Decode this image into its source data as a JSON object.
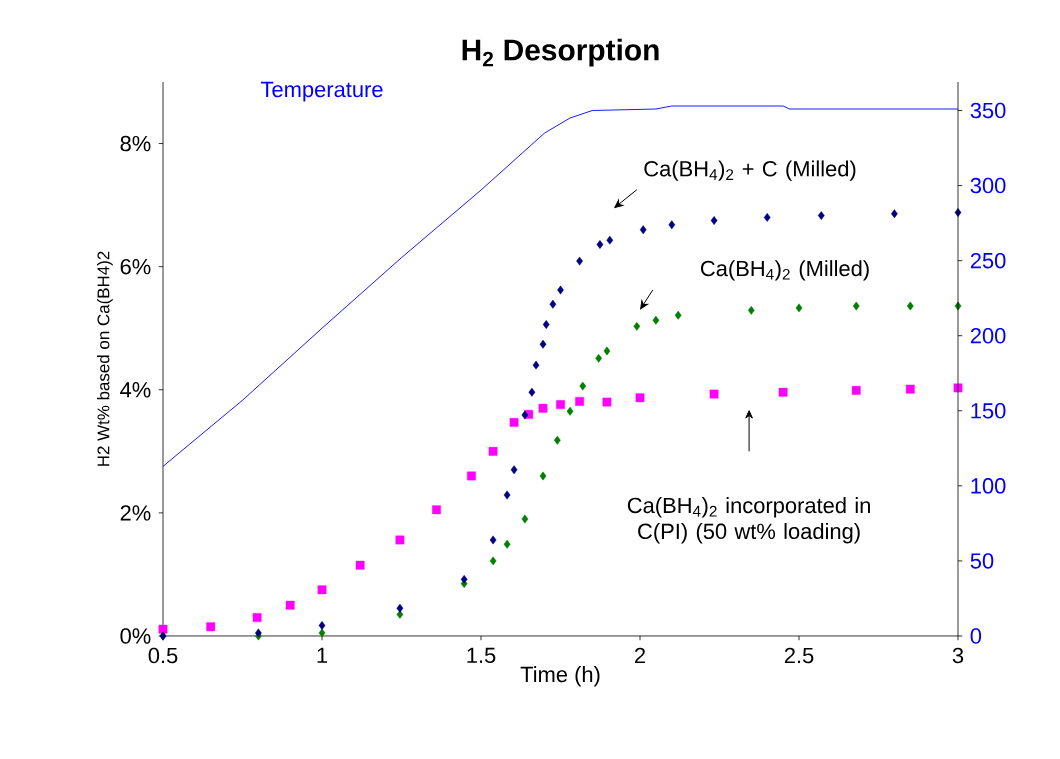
{
  "chart_data": {
    "type": "scatter",
    "title": "H$_{2}$ Desorption",
    "xlabel": "Time (h)",
    "ylabel": "H2 Wt%  based on Ca(BH4)2",
    "xlim": [
      0.5,
      3
    ],
    "xticks": [
      0.5,
      1,
      1.5,
      2,
      2.5,
      3
    ],
    "ylim": [
      0,
      9
    ],
    "yticks": [
      {
        "value": 0,
        "label": "0%"
      },
      {
        "value": 2,
        "label": "2%"
      },
      {
        "value": 4,
        "label": "4%"
      },
      {
        "value": 6,
        "label": "6%"
      },
      {
        "value": 8,
        "label": "8%"
      }
    ],
    "y2lim": [
      0,
      369
    ],
    "y2ticks": [
      0,
      50,
      100,
      150,
      200,
      250,
      300,
      350
    ],
    "grid": false,
    "series": [
      {
        "color": "#000080",
        "marker": "diamond",
        "x": [
          0.5,
          0.8,
          1.0,
          1.245,
          1.447,
          1.538,
          1.582,
          1.604,
          1.638,
          1.66,
          1.673,
          1.695,
          1.705,
          1.726,
          1.75,
          1.81,
          1.874,
          1.905,
          2.01,
          2.1,
          2.233,
          2.4,
          2.57,
          2.8,
          3.0
        ],
        "values": [
          0.0,
          0.05,
          0.17,
          0.45,
          0.92,
          1.56,
          2.29,
          2.7,
          3.59,
          3.96,
          4.4,
          4.74,
          5.06,
          5.39,
          5.62,
          6.09,
          6.36,
          6.43,
          6.6,
          6.68,
          6.75,
          6.8,
          6.83,
          6.86,
          6.88
        ]
      },
      {
        "color": "#008000",
        "marker": "diamond",
        "x": [
          0.5,
          0.8,
          1.0,
          1.245,
          1.447,
          1.538,
          1.582,
          1.638,
          1.695,
          1.74,
          1.78,
          1.82,
          1.87,
          1.896,
          1.99,
          2.05,
          2.12,
          2.35,
          2.5,
          2.68,
          2.85,
          3.0
        ],
        "values": [
          0.0,
          0.0,
          0.05,
          0.35,
          0.85,
          1.22,
          1.49,
          1.9,
          2.6,
          3.18,
          3.65,
          4.06,
          4.51,
          4.63,
          5.03,
          5.13,
          5.21,
          5.29,
          5.33,
          5.36,
          5.36,
          5.36
        ]
      },
      {
        "color": "#ff00ff",
        "marker": "square",
        "x": [
          0.5,
          0.65,
          0.796,
          0.9,
          1.0,
          1.12,
          1.245,
          1.36,
          1.47,
          1.538,
          1.604,
          1.65,
          1.695,
          1.75,
          1.81,
          1.896,
          2.0,
          2.233,
          2.45,
          2.68,
          2.85,
          3.0
        ],
        "values": [
          0.11,
          0.15,
          0.3,
          0.5,
          0.75,
          1.15,
          1.56,
          2.05,
          2.6,
          3.0,
          3.47,
          3.6,
          3.7,
          3.76,
          3.81,
          3.8,
          3.87,
          3.93,
          3.96,
          3.99,
          4.01,
          4.03
        ]
      },
      {
        "type": "line",
        "axis": "y2",
        "name": "Temperature",
        "color": "#0000ff",
        "marker": "none",
        "line_style": "solid",
        "x": [
          0.5,
          0.75,
          1.0,
          1.25,
          1.5,
          1.7,
          1.78,
          1.85,
          2.05,
          2.1,
          2.45,
          2.47,
          3.0
        ],
        "values": [
          113,
          157,
          205,
          252,
          297,
          335,
          345,
          350,
          351,
          353,
          353,
          351,
          351
        ]
      }
    ],
    "annotations": [
      "Ca(BH$_{4}$)$_{2}$ + C (Milled)",
      "Ca(BH$_{4}$)$_{2}$ (Milled)",
      "Ca(BH$_{4}$)$_{2}$ incorporated in C(PI) (50 wt% loading)"
    ]
  }
}
